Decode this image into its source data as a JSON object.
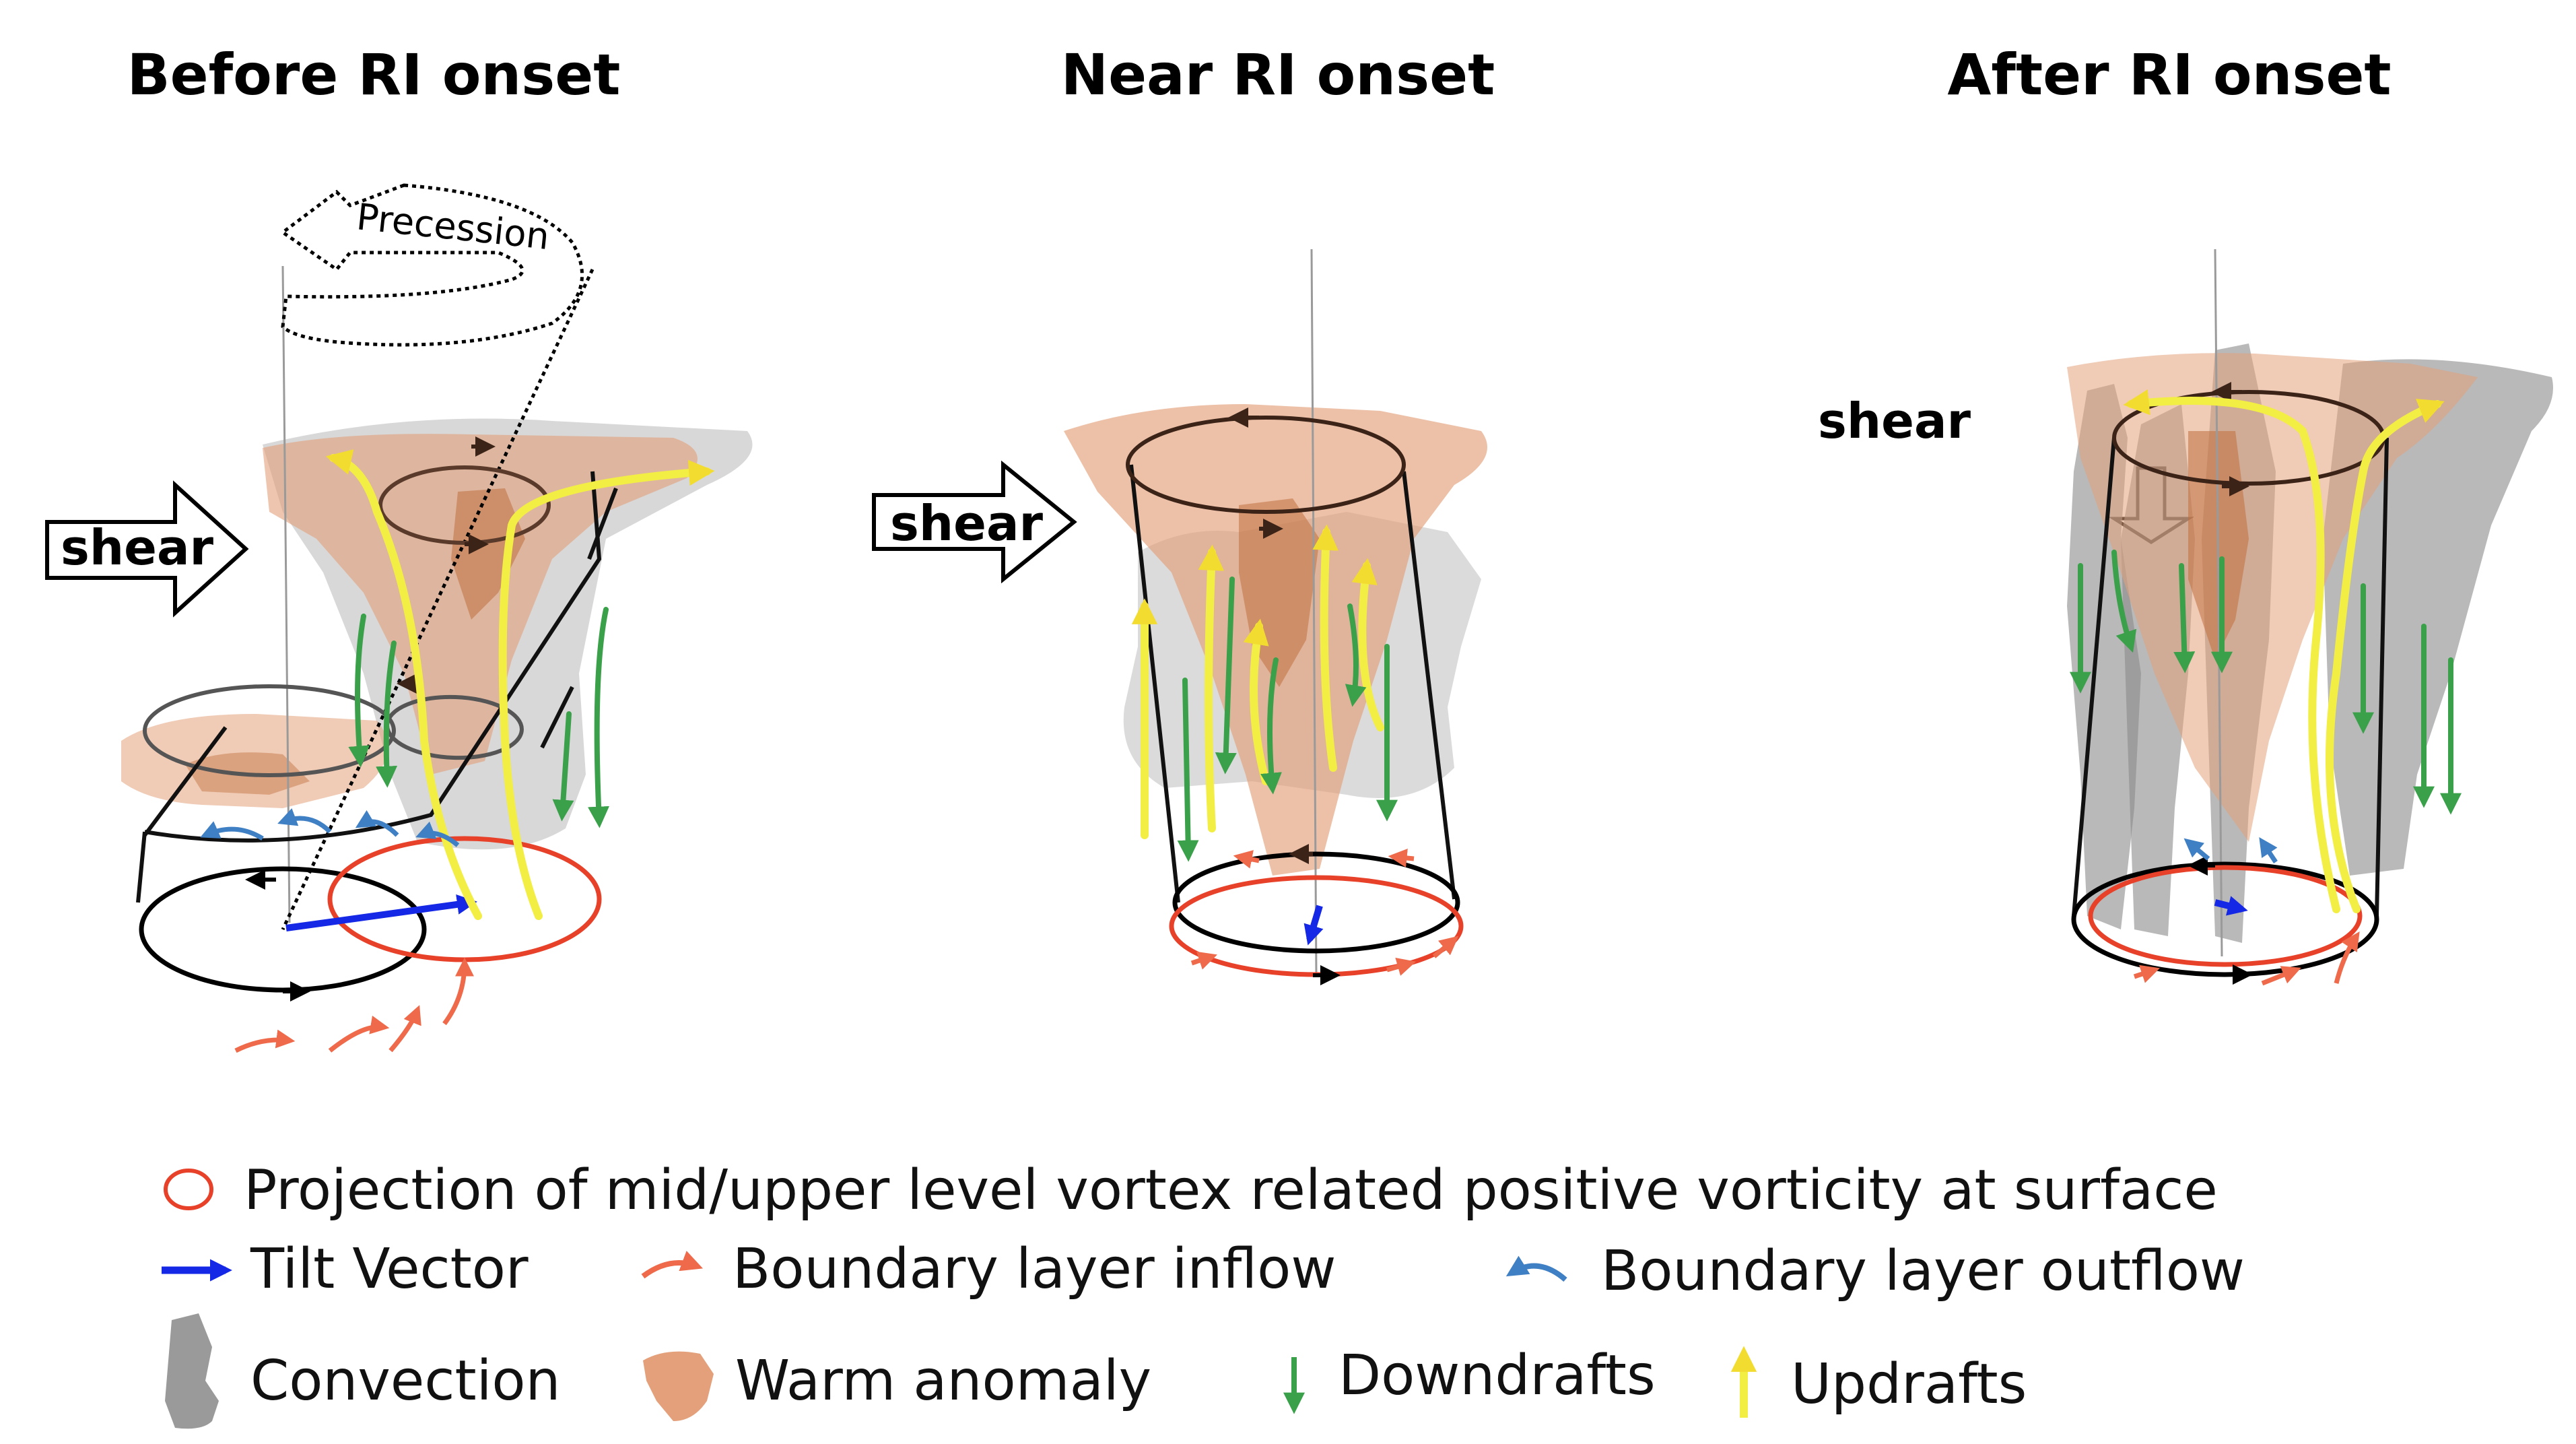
{
  "panels": [
    {
      "title": "Before RI onset"
    },
    {
      "title": "Near RI onset"
    },
    {
      "title": "After RI onset"
    }
  ],
  "labels": {
    "shear": "shear",
    "precession": "Precession"
  },
  "legend": {
    "projection": "Projection of mid/upper level vortex related positive vorticity at surface",
    "tilt_vector": "Tilt Vector",
    "bl_inflow": "Boundary layer inflow",
    "bl_outflow": "Boundary layer outflow",
    "convection": "Convection",
    "warm_anomaly": "Warm anomaly",
    "downdrafts": "Downdrafts",
    "updrafts": "Updrafts"
  },
  "colors": {
    "vortex_outline": "#000000",
    "projection_circle": "#e8412a",
    "tilt_vector": "#1428e6",
    "bl_inflow": "#ee6a4a",
    "bl_outflow": "#3f7fc4",
    "convection": "#9a9a9a",
    "warm_anomaly": "#e3a07a",
    "downdrafts": "#3aa04a",
    "updrafts": "#f2ee44"
  }
}
